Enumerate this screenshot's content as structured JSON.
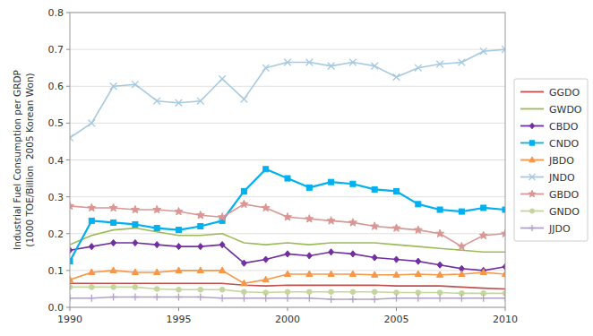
{
  "chart_data": {
    "type": "line",
    "y_label": "Industrial Fuel Consumption per GRDP\n(1000 TOE/Billion  2005 Korean Won)",
    "x": [
      1990,
      1991,
      1992,
      1993,
      1994,
      1995,
      1996,
      1997,
      1998,
      1999,
      2000,
      2001,
      2002,
      2003,
      2004,
      2005,
      2006,
      2007,
      2008,
      2009,
      2010
    ],
    "series": [
      {
        "name": "GGDO",
        "color": "#c0504d",
        "marker": "none",
        "values": [
          0.065,
          0.065,
          0.065,
          0.065,
          0.065,
          0.065,
          0.065,
          0.065,
          0.06,
          0.058,
          0.06,
          0.06,
          0.06,
          0.06,
          0.06,
          0.058,
          0.058,
          0.058,
          0.055,
          0.052,
          0.05
        ]
      },
      {
        "name": "GWDO",
        "color": "#9bbb59",
        "marker": "none",
        "values": [
          0.17,
          0.195,
          0.21,
          0.215,
          0.205,
          0.195,
          0.195,
          0.2,
          0.175,
          0.17,
          0.175,
          0.17,
          0.175,
          0.175,
          0.175,
          0.17,
          0.165,
          0.16,
          0.155,
          0.15,
          0.15
        ]
      },
      {
        "name": "CBDO",
        "color": "#7030a0",
        "marker": "diamond",
        "values": [
          0.155,
          0.165,
          0.175,
          0.175,
          0.17,
          0.165,
          0.165,
          0.17,
          0.12,
          0.13,
          0.145,
          0.14,
          0.15,
          0.145,
          0.135,
          0.13,
          0.125,
          0.115,
          0.105,
          0.1,
          0.11
        ]
      },
      {
        "name": "CNDO",
        "color": "#00b0f0",
        "marker": "square",
        "values": [
          0.125,
          0.235,
          0.23,
          0.225,
          0.215,
          0.21,
          0.22,
          0.235,
          0.315,
          0.375,
          0.35,
          0.325,
          0.34,
          0.335,
          0.32,
          0.315,
          0.28,
          0.265,
          0.26,
          0.27,
          0.265
        ]
      },
      {
        "name": "JBDO",
        "color": "#f79646",
        "marker": "triangle",
        "values": [
          0.075,
          0.095,
          0.1,
          0.095,
          0.095,
          0.1,
          0.1,
          0.1,
          0.065,
          0.075,
          0.09,
          0.09,
          0.09,
          0.09,
          0.088,
          0.088,
          0.09,
          0.088,
          0.09,
          0.095,
          0.09
        ]
      },
      {
        "name": "JNDO",
        "color": "#a6c9e2",
        "marker": "x",
        "values": [
          0.46,
          0.5,
          0.6,
          0.605,
          0.56,
          0.555,
          0.56,
          0.62,
          0.565,
          0.65,
          0.665,
          0.665,
          0.655,
          0.665,
          0.655,
          0.625,
          0.65,
          0.66,
          0.665,
          0.695,
          0.7
        ]
      },
      {
        "name": "GBDO",
        "color": "#d99694",
        "marker": "star",
        "values": [
          0.275,
          0.27,
          0.27,
          0.265,
          0.265,
          0.26,
          0.25,
          0.245,
          0.28,
          0.27,
          0.245,
          0.24,
          0.235,
          0.23,
          0.22,
          0.215,
          0.21,
          0.2,
          0.165,
          0.195,
          0.2
        ]
      },
      {
        "name": "GNDO",
        "color": "#c3d69b",
        "marker": "circle",
        "values": [
          0.055,
          0.055,
          0.055,
          0.055,
          0.05,
          0.048,
          0.048,
          0.048,
          0.042,
          0.04,
          0.042,
          0.042,
          0.042,
          0.042,
          0.042,
          0.04,
          0.04,
          0.04,
          0.038,
          0.038,
          0.038
        ]
      },
      {
        "name": "JJDO",
        "color": "#b2a2c7",
        "marker": "plus",
        "values": [
          0.025,
          0.025,
          0.028,
          0.028,
          0.028,
          0.028,
          0.028,
          0.025,
          0.025,
          0.025,
          0.025,
          0.025,
          0.022,
          0.022,
          0.022,
          0.025,
          0.025,
          0.025,
          0.025,
          0.025,
          0.025
        ]
      }
    ],
    "xlim": [
      1990,
      2010
    ],
    "xticks": [
      1990,
      1995,
      2000,
      2005,
      2010
    ],
    "ylim": [
      0.0,
      0.8
    ],
    "yticks": [
      {
        "value": 0.0,
        "label": "0.0"
      },
      0.1,
      0.2,
      0.3,
      0.4,
      0.5,
      0.6,
      0.7,
      0.8
    ],
    "grid": true,
    "legend": "right"
  }
}
